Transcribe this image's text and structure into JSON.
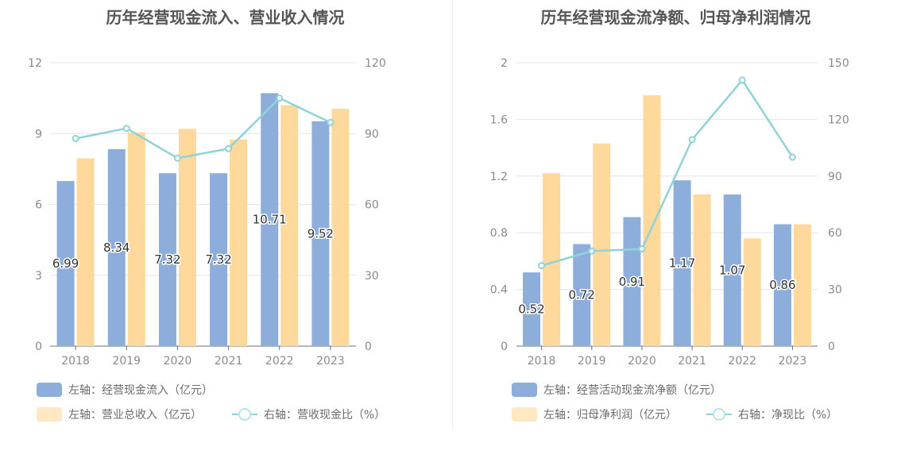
{
  "colors": {
    "blue": "#8daedb",
    "orange": "#ffd99b",
    "line": "#8fd3d9"
  },
  "chart_data": [
    {
      "type": "bar",
      "title": "历年经营现金流入、营业收入情况",
      "categories": [
        "2018",
        "2019",
        "2020",
        "2021",
        "2022",
        "2023"
      ],
      "y_left": {
        "ticks": [
          0,
          3,
          6,
          9,
          12
        ],
        "ylim": [
          0,
          12
        ]
      },
      "y_right": {
        "ticks": [
          0,
          30,
          60,
          90,
          120
        ],
        "ylim": [
          0,
          120
        ]
      },
      "series": [
        {
          "name": "左轴：经营现金流入（亿元）",
          "kind": "bar",
          "axis": "left",
          "color": "#8daedb",
          "values": [
            6.99,
            8.34,
            7.32,
            7.32,
            10.71,
            9.52
          ],
          "labels": [
            "6.99",
            "8.34",
            "7.32",
            "7.32",
            "10.71",
            "9.52"
          ]
        },
        {
          "name": "左轴：营业总收入（亿元）",
          "kind": "bar",
          "axis": "left",
          "color": "#ffd99b",
          "values": [
            7.95,
            9.05,
            9.2,
            8.75,
            10.2,
            10.05
          ]
        },
        {
          "name": "右轴：营收现金比（%）",
          "kind": "line",
          "axis": "right",
          "color": "#8fd3d9",
          "values": [
            87.9,
            92.2,
            79.6,
            83.6,
            105.0,
            94.7
          ]
        }
      ],
      "grid": true
    },
    {
      "type": "bar",
      "title": "历年经营现金流净额、归母净利润情况",
      "categories": [
        "2018",
        "2019",
        "2020",
        "2021",
        "2022",
        "2023"
      ],
      "y_left": {
        "ticks": [
          0,
          0.4,
          0.8,
          1.2,
          1.6,
          2
        ],
        "tick_labels": [
          "0",
          "0.4",
          "0.8",
          "1.2",
          "1.6",
          "2"
        ],
        "ylim": [
          0,
          2
        ]
      },
      "y_right": {
        "ticks": [
          0,
          30,
          60,
          90,
          120,
          150
        ],
        "ylim": [
          0,
          150
        ]
      },
      "series": [
        {
          "name": "左轴：经营活动现金流净额（亿元）",
          "kind": "bar",
          "axis": "left",
          "color": "#8daedb",
          "values": [
            0.52,
            0.72,
            0.91,
            1.17,
            1.07,
            0.86
          ],
          "labels": [
            "0.52",
            "0.72",
            "0.91",
            "1.17",
            "1.07",
            "0.86"
          ]
        },
        {
          "name": "左轴：归母净利润（亿元）",
          "kind": "bar",
          "axis": "left",
          "color": "#ffd99b",
          "values": [
            1.22,
            1.43,
            1.77,
            1.07,
            0.76,
            0.86
          ]
        },
        {
          "name": "右轴：净现比（%）",
          "kind": "line",
          "axis": "right",
          "color": "#8fd3d9",
          "values": [
            42.6,
            50.3,
            51.4,
            109.3,
            140.8,
            100.0
          ]
        }
      ],
      "grid": true
    }
  ]
}
